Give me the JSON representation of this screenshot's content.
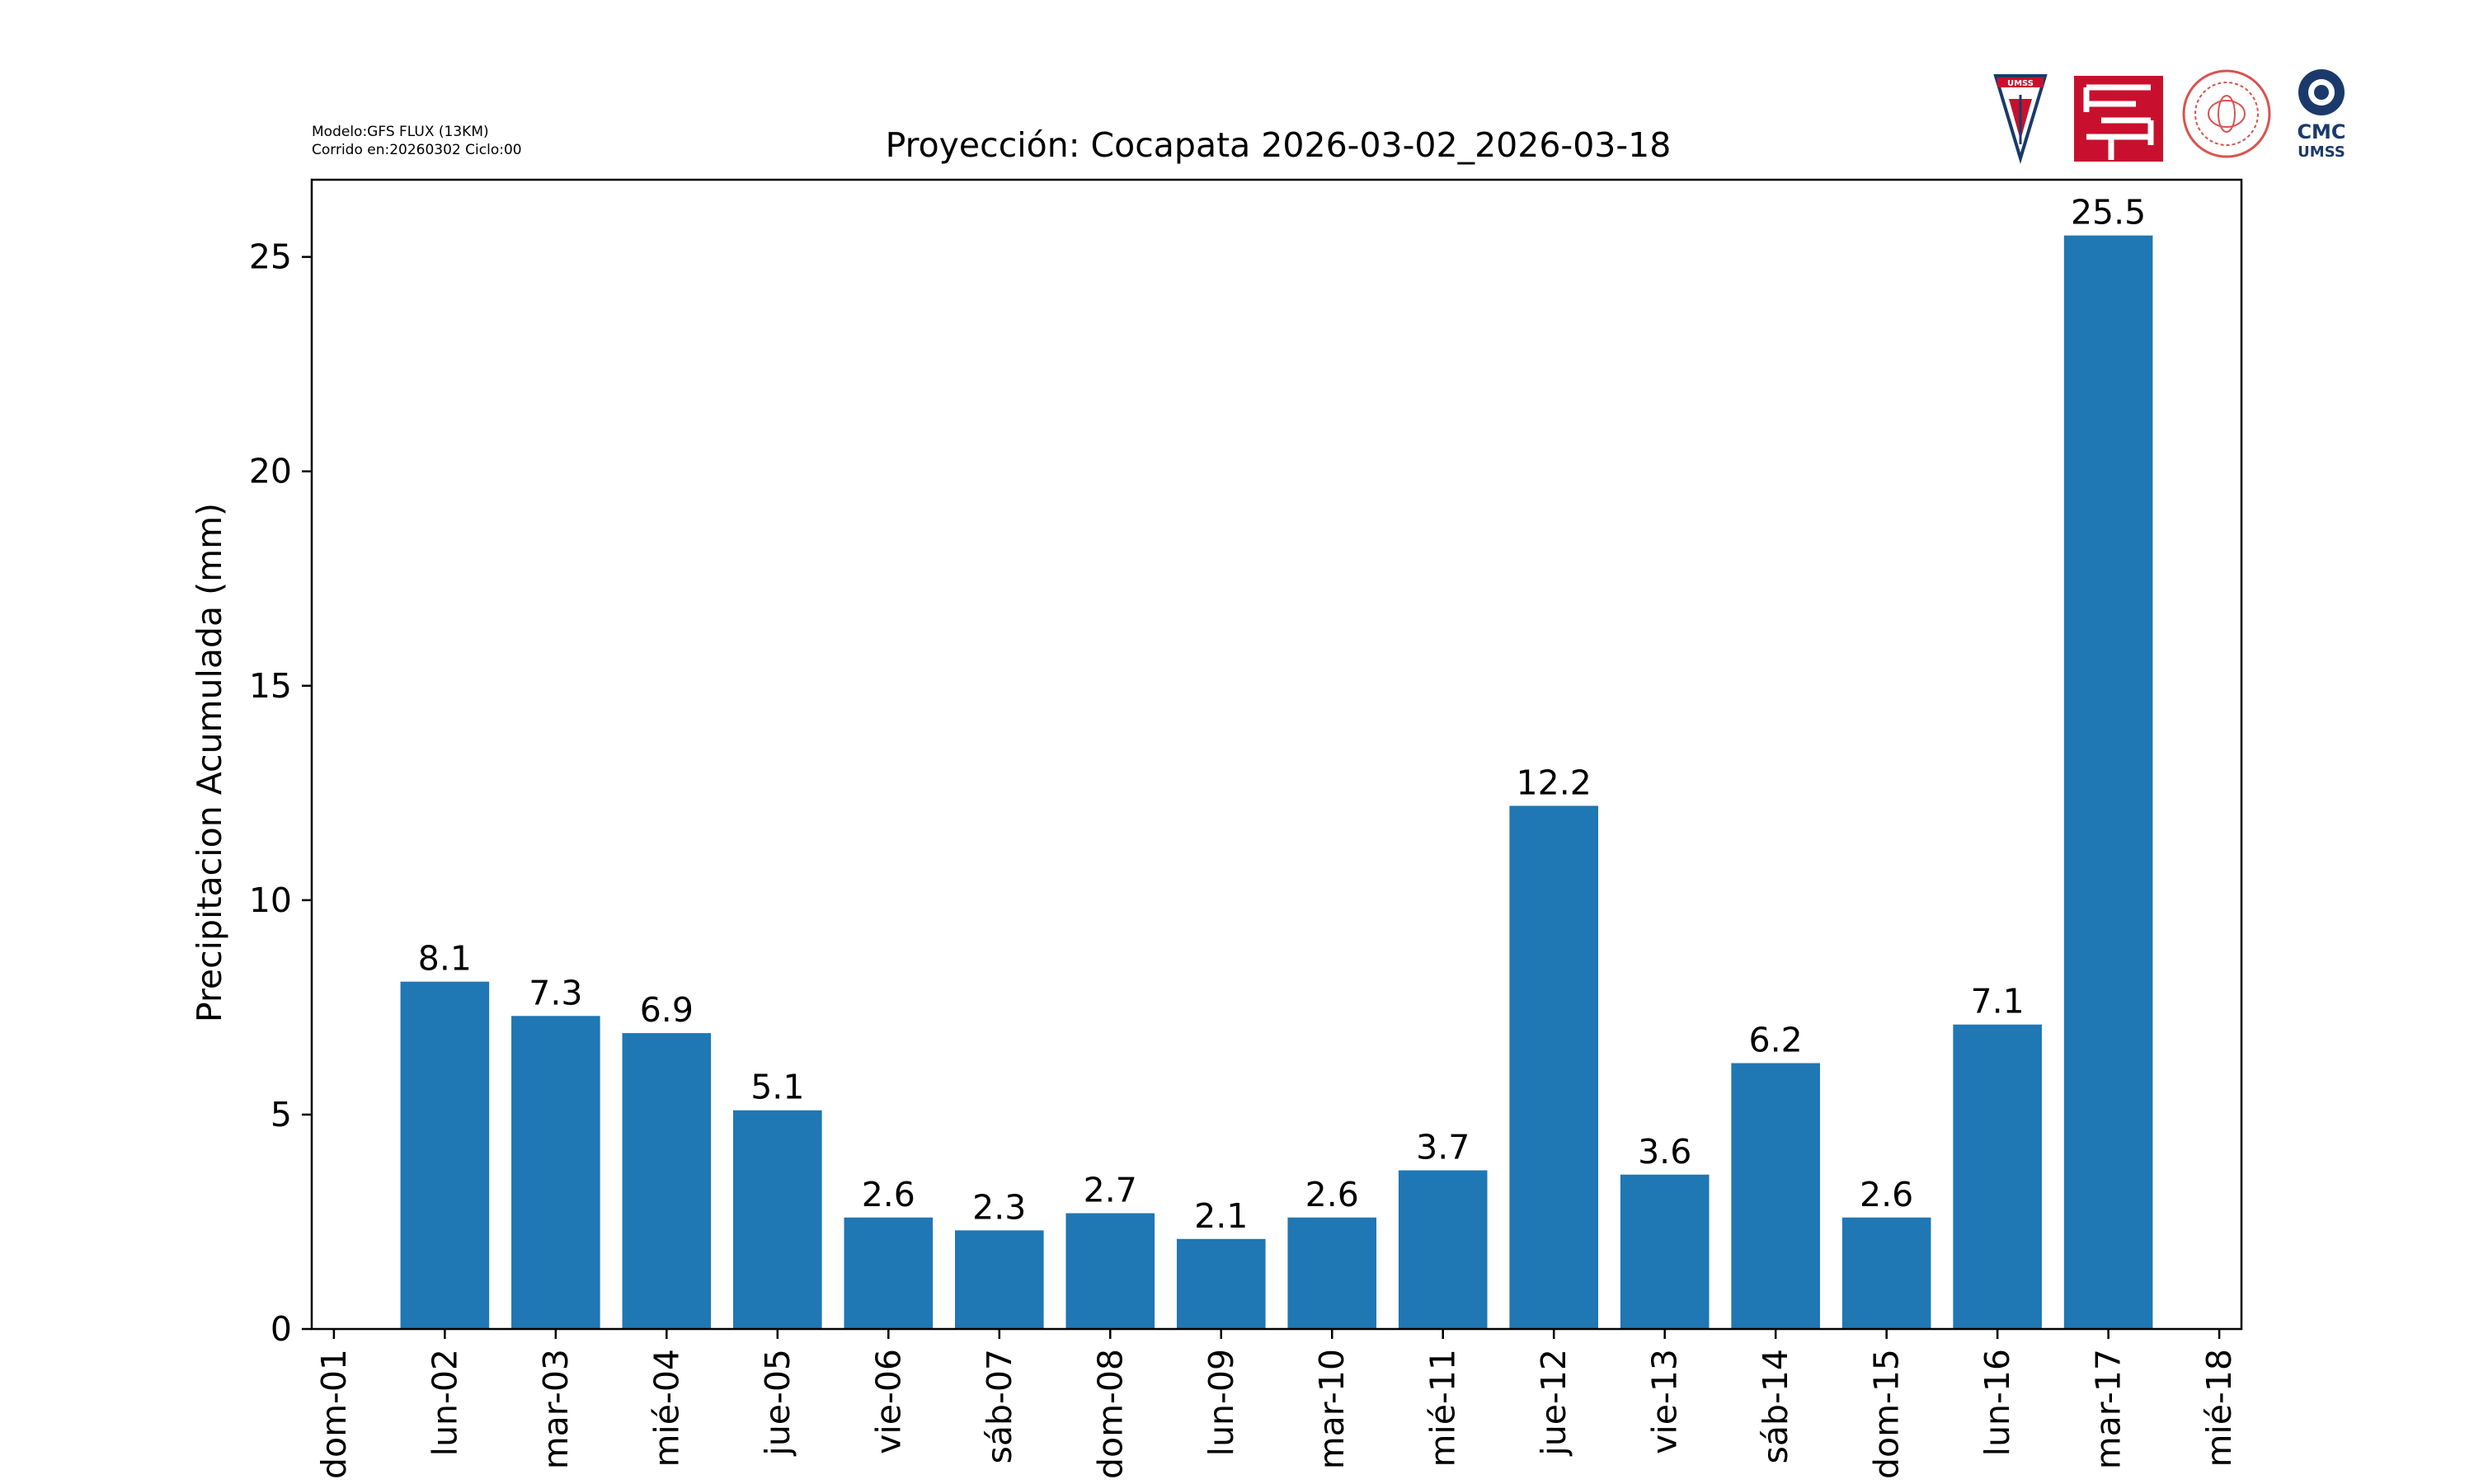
{
  "header": {
    "model_line1": "Modelo:GFS FLUX (13KM)",
    "model_line2": "Corrido en:20260302 Ciclo:00"
  },
  "logos": {
    "umss_text": "UMSS",
    "cmc_text": "CMC",
    "cmc_sub": "UMSS"
  },
  "colors": {
    "bar": "#1f77b4",
    "axis": "#000000",
    "logo_red": "#c8102e",
    "logo_blue": "#1b3a6b",
    "seal_red": "#d9534f"
  },
  "chart_data": {
    "type": "bar",
    "title": "Proyección: Cocapata  2026-03-02_2026-03-18",
    "xlabel": "",
    "ylabel": "Precipitacion Acumulada (mm)",
    "x_tick_labels": [
      "dom-01",
      "lun-02",
      "mar-03",
      "mié-04",
      "jue-05",
      "vie-06",
      "sáb-07",
      "dom-08",
      "lun-09",
      "mar-10",
      "mié-11",
      "jue-12",
      "vie-13",
      "sáb-14",
      "dom-15",
      "lun-16",
      "mar-17",
      "mié-18"
    ],
    "x_range": [
      -0.2,
      17.2
    ],
    "categories": [
      "lun-02",
      "mar-03",
      "mié-04",
      "jue-05",
      "vie-06",
      "sáb-07",
      "dom-08",
      "lun-09",
      "mar-10",
      "mié-11",
      "jue-12",
      "vie-13",
      "sáb-14",
      "dom-15",
      "lun-16",
      "mar-17"
    ],
    "bar_positions": [
      1,
      2,
      3,
      4,
      5,
      6,
      7,
      8,
      9,
      10,
      11,
      12,
      13,
      14,
      15,
      16
    ],
    "values": [
      8.1,
      7.3,
      6.9,
      5.1,
      2.6,
      2.3,
      2.7,
      2.1,
      2.6,
      3.7,
      12.2,
      3.6,
      6.2,
      2.6,
      7.1,
      25.5
    ],
    "value_labels": [
      "8.1",
      "7.3",
      "6.9",
      "5.1",
      "2.6",
      "2.3",
      "2.7",
      "2.1",
      "2.6",
      "3.7",
      "12.2",
      "3.6",
      "6.2",
      "2.6",
      "7.1",
      "25.5"
    ],
    "bar_width": 0.8,
    "y_ticks": [
      0,
      5,
      10,
      15,
      20,
      25
    ],
    "y_tick_labels": [
      "0",
      "5",
      "10",
      "15",
      "20",
      "25"
    ],
    "ylim": [
      0,
      26.8
    ],
    "grid": false,
    "legend": "none"
  }
}
